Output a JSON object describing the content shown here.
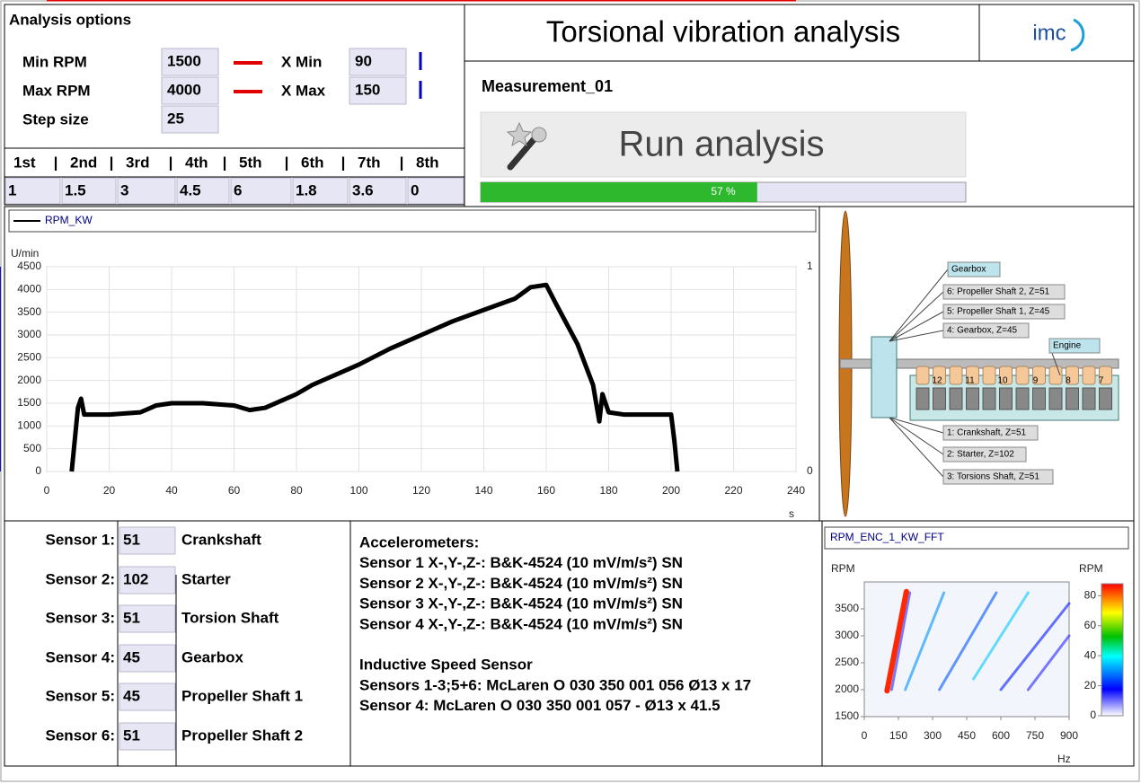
{
  "header": {
    "title": "Torsional vibration analysis",
    "logo": "imc"
  },
  "analysis_options": {
    "title": "Analysis options",
    "fields": [
      {
        "label": "Min RPM",
        "value": 1500
      },
      {
        "label": "Max RPM",
        "value": 4000
      },
      {
        "label": "Step size",
        "value": 25
      },
      {
        "label": "X Min",
        "value": 90
      },
      {
        "label": "X Max",
        "value": 150
      }
    ]
  },
  "orders": {
    "headers": [
      "1st",
      "2nd",
      "3rd",
      "4th",
      "5th",
      "6th",
      "7th",
      "8th"
    ],
    "values": [
      1,
      1.5,
      3,
      4.5,
      6,
      1.8,
      3.6,
      0
    ]
  },
  "measurement": {
    "name": "Measurement_01",
    "button": "Run analysis",
    "progress": {
      "value": 57,
      "label": "57 %",
      "range": [
        0,
        100
      ],
      "color": "#2db82d"
    }
  },
  "chart_data": [
    {
      "type": "line",
      "ylabel": "U/min",
      "xlabel": "s",
      "xlim": [
        0,
        240
      ],
      "xticks": [
        0,
        20,
        40,
        60,
        80,
        100,
        120,
        140,
        160,
        180,
        200,
        220,
        240
      ],
      "ylim": [
        0,
        4500
      ],
      "yticks": [
        0,
        500,
        1000,
        1500,
        2000,
        2500,
        3000,
        3500,
        4000,
        4500
      ],
      "y2lim": [
        0,
        1
      ],
      "y2ticks": [
        0,
        1
      ],
      "grid": true,
      "limit_color": "#e00000",
      "cursor_color": "#0000c8",
      "series": [
        {
          "name": "RPM_KW",
          "color": "#000000",
          "x": [
            8,
            10,
            11,
            12,
            20,
            30,
            35,
            40,
            50,
            60,
            65,
            70,
            75,
            80,
            85,
            90,
            95,
            100,
            110,
            120,
            130,
            140,
            150,
            155,
            160,
            163,
            170,
            175,
            177,
            178,
            180,
            185,
            190,
            200,
            201,
            202
          ],
          "values": [
            0,
            1400,
            1600,
            1250,
            1250,
            1300,
            1450,
            1500,
            1500,
            1450,
            1350,
            1400,
            1550,
            1700,
            1900,
            2050,
            2200,
            2350,
            2700,
            3000,
            3300,
            3550,
            3800,
            4050,
            4100,
            3700,
            2800,
            1900,
            1100,
            1700,
            1300,
            1250,
            1250,
            1250,
            700,
            0
          ]
        }
      ]
    },
    {
      "type": "heatmap",
      "title": "RPM_ENC_1_KW_FFT",
      "xlabel": "Hz",
      "ylabel": "RPM",
      "zlabel": "RPM",
      "xlim": [
        0,
        900
      ],
      "xticks": [
        0,
        150,
        300,
        450,
        600,
        750,
        900
      ],
      "ylim": [
        1500,
        4000
      ],
      "yticks": [
        1500,
        2000,
        2500,
        3000,
        3500
      ],
      "zlim": [
        0,
        88
      ],
      "zticks": [
        0,
        20,
        40,
        60,
        80
      ],
      "streaks": [
        {
          "x": [
            120,
            200
          ],
          "y": [
            2000,
            3800
          ],
          "value": 15
        },
        {
          "x": [
            180,
            350
          ],
          "y": [
            2000,
            3800
          ],
          "value": 30
        },
        {
          "x": [
            330,
            580
          ],
          "y": [
            2000,
            3800
          ],
          "value": 25
        },
        {
          "x": [
            480,
            720
          ],
          "y": [
            2200,
            3800
          ],
          "value": 35
        },
        {
          "x": [
            600,
            900
          ],
          "y": [
            2000,
            3600
          ],
          "value": 20
        },
        {
          "x": [
            720,
            900
          ],
          "y": [
            2000,
            3000
          ],
          "value": 15
        },
        {
          "x": [
            100,
            185
          ],
          "y": [
            1980,
            3820
          ],
          "value": 85
        }
      ]
    }
  ],
  "diagram": {
    "labels": [
      "Gearbox",
      "6: Propeller Shaft 2, Z=51",
      "5: Propeller Shaft 1, Z=45",
      "4: Gearbox, Z=45",
      "Engine",
      "1: Crankshaft, Z=51",
      "2: Starter, Z=102",
      "3: Torsions Shaft, Z=51"
    ],
    "cylinders": [
      "12",
      "11",
      "10",
      "9",
      "8",
      "7"
    ]
  },
  "sensors": [
    {
      "label": "Sensor 1:",
      "value": 51,
      "name": "Crankshaft"
    },
    {
      "label": "Sensor 2:",
      "value": 102,
      "name": "Starter"
    },
    {
      "label": "Sensor 3:",
      "value": 51,
      "name": "Torsion Shaft"
    },
    {
      "label": "Sensor 4:",
      "value": 45,
      "name": "Gearbox"
    },
    {
      "label": "Sensor 5:",
      "value": 45,
      "name": "Propeller Shaft 1"
    },
    {
      "label": "Sensor 6:",
      "value": 51,
      "name": "Propeller Shaft 2"
    }
  ],
  "notes": {
    "accelerometers": {
      "title": "Accelerometers:",
      "lines": [
        "Sensor 1 X-,Y-,Z-: B&K-4524 (10 mV/m/s²) SN",
        "Sensor 2 X-,Y-,Z-: B&K-4524 (10 mV/m/s²) SN",
        "Sensor 3 X-,Y-,Z-: B&K-4524 (10 mV/m/s²) SN",
        "Sensor 4 X-,Y-,Z-: B&K-4524 (10 mV/m/s²) SN"
      ]
    },
    "speed_sensors": {
      "title": "Inductive Speed Sensor",
      "lines": [
        "Sensors 1-3;5+6: McLaren O 030 350 001 056 Ø13 x 17",
        "Sensor 4: McLaren O 030 350 001 057 - Ø13 x 41.5"
      ]
    }
  }
}
